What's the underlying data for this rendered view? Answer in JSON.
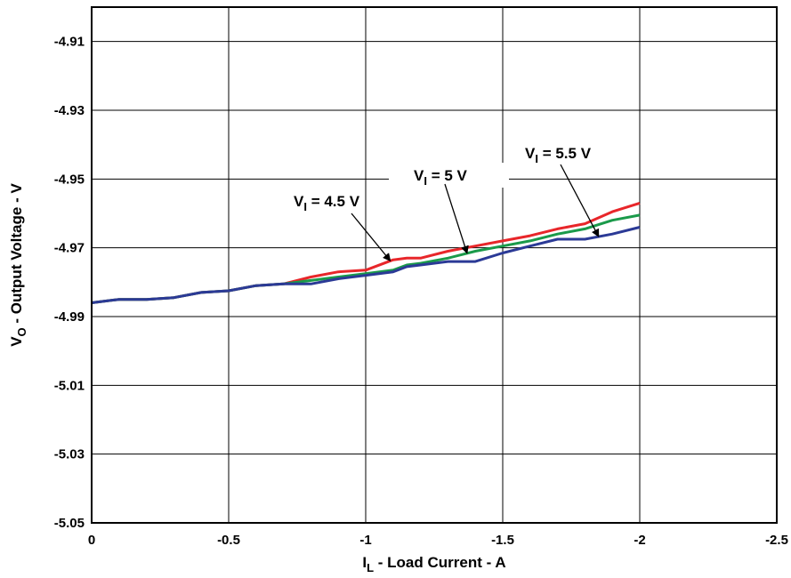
{
  "chart_data": {
    "type": "line",
    "title": "",
    "xlabel": {
      "main": "I",
      "sub": "L",
      "rest": " - Load Current - A"
    },
    "ylabel": {
      "main": "V",
      "sub": "O",
      "rest": " - Output Voltage - V"
    },
    "xlim": [
      0,
      -2.5
    ],
    "ylim": [
      -5.05,
      -4.9
    ],
    "x_ticks": [
      0,
      -0.5,
      -1,
      -1.5,
      -2,
      -2.5
    ],
    "x_tick_labels": [
      "0",
      "-0.5",
      "-1",
      "-1.5",
      "-2",
      "-2.5"
    ],
    "y_ticks": [
      -4.91,
      -4.93,
      -4.95,
      -4.97,
      -4.99,
      -5.01,
      -5.03,
      -5.05
    ],
    "y_tick_labels": [
      "-4.91",
      "-4.93",
      "-4.95",
      "-4.97",
      "-4.99",
      "-5.01",
      "-5.03",
      "-5.05"
    ],
    "grid": true,
    "x": [
      0,
      -0.1,
      -0.2,
      -0.3,
      -0.4,
      -0.5,
      -0.6,
      -0.7,
      -0.8,
      -0.9,
      -1.0,
      -1.1,
      -1.15,
      -1.2,
      -1.3,
      -1.4,
      -1.5,
      -1.6,
      -1.7,
      -1.8,
      -1.9,
      -2.0
    ],
    "series": [
      {
        "name": "VI = 4.5 V",
        "color": "#e8262a",
        "values": [
          -4.986,
          -4.985,
          -4.985,
          -4.9845,
          -4.983,
          -4.9825,
          -4.981,
          -4.9805,
          -4.9785,
          -4.977,
          -4.9765,
          -4.9735,
          -4.973,
          -4.973,
          -4.971,
          -4.9695,
          -4.968,
          -4.9665,
          -4.9645,
          -4.963,
          -4.9595,
          -4.957
        ]
      },
      {
        "name": "VI = 5 V",
        "color": "#1a9a4a",
        "values": [
          -4.986,
          -4.985,
          -4.985,
          -4.9845,
          -4.983,
          -4.9825,
          -4.981,
          -4.9805,
          -4.9795,
          -4.9785,
          -4.9775,
          -4.9765,
          -4.975,
          -4.9745,
          -4.973,
          -4.971,
          -4.9695,
          -4.968,
          -4.966,
          -4.9645,
          -4.962,
          -4.9605
        ]
      },
      {
        "name": "VI = 5.5 V",
        "color": "#2b3a96",
        "values": [
          -4.986,
          -4.985,
          -4.985,
          -4.9845,
          -4.983,
          -4.9825,
          -4.981,
          -4.9805,
          -4.9805,
          -4.979,
          -4.978,
          -4.977,
          -4.9755,
          -4.975,
          -4.974,
          -4.974,
          -4.9715,
          -4.9695,
          -4.9675,
          -4.9675,
          -4.966,
          -4.964
        ]
      }
    ],
    "annotations": [
      {
        "main": "V",
        "sub": "I",
        "rest": " = 4.5 V",
        "series": 0
      },
      {
        "main": "V",
        "sub": "I",
        "rest": " = 5 V",
        "series": 1
      },
      {
        "main": "V",
        "sub": "I",
        "rest": " = 5.5 V",
        "series": 2
      }
    ]
  }
}
